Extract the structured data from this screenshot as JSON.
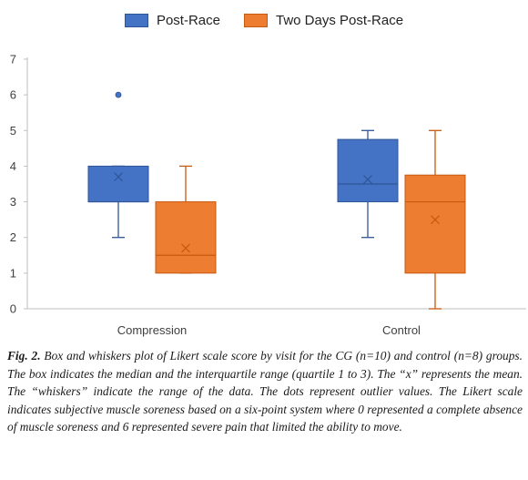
{
  "chart_data": {
    "type": "box",
    "legend_position": "top",
    "categories": [
      "Compression",
      "Control"
    ],
    "series": [
      {
        "name": "Post-Race",
        "color": "#4472c4",
        "stroke": "#2f5597",
        "boxes": [
          {
            "category": "Compression",
            "min": 2,
            "q1": 3,
            "median": 3,
            "q3": 4,
            "max": 4,
            "mean": 3.7,
            "outliers": [
              6
            ]
          },
          {
            "category": "Control",
            "min": 2,
            "q1": 3,
            "median": 3.5,
            "q3": 4.75,
            "max": 5,
            "mean": 3.625,
            "outliers": []
          }
        ]
      },
      {
        "name": "Two Days Post-Race",
        "color": "#ed7d31",
        "stroke": "#c55a11",
        "boxes": [
          {
            "category": "Compression",
            "min": 1,
            "q1": 1,
            "median": 1.5,
            "q3": 3,
            "max": 4,
            "mean": 1.7,
            "outliers": []
          },
          {
            "category": "Control",
            "min": 0,
            "q1": 1,
            "median": 3,
            "q3": 3.75,
            "max": 5,
            "mean": 2.5,
            "outliers": []
          }
        ]
      }
    ],
    "ylim": [
      0,
      7
    ],
    "yticks": [
      "0",
      "1",
      "2",
      "3",
      "4",
      "5",
      "6",
      "7"
    ],
    "grid": false,
    "xlabel": "",
    "ylabel": ""
  },
  "caption": {
    "label": "Fig. 2.",
    "text": " Box and whiskers plot of Likert scale score by visit for the CG (n=10) and control (n=8) groups. The box indicates the median and the interquartile range (quartile 1 to 3). The “x” represents the mean. The “whiskers” indicate the range of the data. The dots represent outlier values. The Likert scale indicates subjective muscle soreness based on a six-point system where 0 represented a complete absence of muscle soreness and 6 represented severe pain that limited the ability to move."
  }
}
